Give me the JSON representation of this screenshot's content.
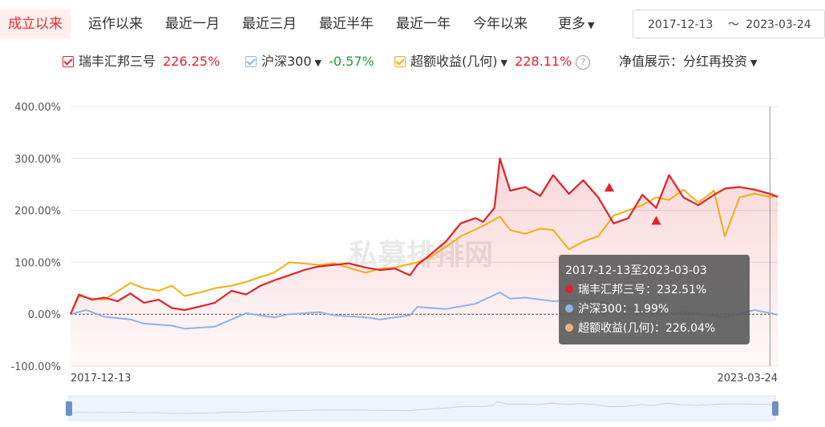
{
  "tabs": [
    "成立以来",
    "运作以来",
    "最近一月",
    "最近三月",
    "最近半年",
    "最近一年",
    "今年以来",
    "更多"
  ],
  "date_range": {
    "start": "2017-12-13",
    "sep": "～",
    "end": "2023-03-24"
  },
  "legend": {
    "fund": {
      "name": "瑞丰汇邦三号",
      "value": "226.25%",
      "color": "#e0222a"
    },
    "index": {
      "name": "沪深300",
      "value": "-0.57%",
      "color": "#8fb3ea"
    },
    "excess": {
      "name": "超额收益(几何)",
      "value": "228.11%",
      "color": "#f5ad0f"
    },
    "nav_label": "净值展示：",
    "nav_value": "分红再投资"
  },
  "watermark": "私募排排网",
  "tooltip": {
    "title": "2017-12-13至2023-03-03",
    "rows": [
      {
        "label": "瑞丰汇邦三号：",
        "value": "232.51%",
        "color": "#e0222a"
      },
      {
        "label": "沪深300：",
        "value": "1.99%",
        "color": "#8fb3ea"
      },
      {
        "label": "超额收益(几何)：",
        "value": "226.04%",
        "color": "#f6b183"
      }
    ]
  },
  "chart_data": {
    "type": "line",
    "x_range": [
      "2017-12-13",
      "2023-03-24"
    ],
    "x_tick_labels": [
      "2017-12-13",
      "2023-03-24"
    ],
    "y_tick_labels": [
      "400.00%",
      "300.00%",
      "200.00%",
      "100.00%",
      "0.00%",
      "-100.00%"
    ],
    "ylim": [
      -100,
      400
    ],
    "grid": true,
    "series": [
      {
        "name": "瑞丰汇邦三号",
        "color": "#e0222a",
        "x": [
          "2017-12-13",
          "2018-01-05",
          "2018-02-10",
          "2018-03-15",
          "2018-04-20",
          "2018-05-25",
          "2018-07-01",
          "2018-08-10",
          "2018-09-15",
          "2018-10-20",
          "2018-12-01",
          "2019-01-10",
          "2019-02-25",
          "2019-04-05",
          "2019-05-15",
          "2019-06-20",
          "2019-08-01",
          "2019-09-10",
          "2019-10-20",
          "2019-12-01",
          "2020-01-10",
          "2020-02-25",
          "2020-04-05",
          "2020-05-15",
          "2020-06-25",
          "2020-07-15",
          "2020-08-20",
          "2020-10-01",
          "2020-11-10",
          "2020-12-20",
          "2021-01-10",
          "2021-02-10",
          "2021-02-25",
          "2021-03-25",
          "2021-05-05",
          "2021-06-15",
          "2021-07-20",
          "2021-09-01",
          "2021-10-10",
          "2021-11-20",
          "2022-01-01",
          "2022-02-10",
          "2022-03-20",
          "2022-04-27",
          "2022-06-01",
          "2022-07-10",
          "2022-08-20",
          "2022-10-01",
          "2022-10-31",
          "2022-12-10",
          "2023-01-20",
          "2023-03-03",
          "2023-03-24"
        ],
        "y": [
          0,
          38,
          28,
          32,
          25,
          40,
          22,
          28,
          12,
          8,
          15,
          22,
          45,
          38,
          55,
          65,
          75,
          85,
          92,
          95,
          98,
          90,
          85,
          88,
          75,
          95,
          115,
          140,
          175,
          185,
          178,
          205,
          300,
          238,
          245,
          228,
          268,
          232,
          258,
          225,
          175,
          185,
          230,
          205,
          268,
          225,
          210,
          230,
          242,
          245,
          240,
          232,
          226
        ]
      },
      {
        "name": "沪深300",
        "color": "#8fb3ea",
        "x": [
          "2017-12-13",
          "2018-01-25",
          "2018-03-15",
          "2018-05-25",
          "2018-07-01",
          "2018-09-15",
          "2018-10-20",
          "2019-01-10",
          "2019-02-25",
          "2019-04-05",
          "2019-06-20",
          "2019-08-01",
          "2019-10-20",
          "2019-12-01",
          "2020-02-25",
          "2020-04-05",
          "2020-06-25",
          "2020-07-15",
          "2020-10-01",
          "2020-12-20",
          "2021-02-25",
          "2021-03-25",
          "2021-05-05",
          "2021-07-20",
          "2021-10-10",
          "2021-12-20",
          "2022-03-20",
          "2022-04-27",
          "2022-07-10",
          "2022-10-31",
          "2023-01-20",
          "2023-03-03",
          "2023-03-24"
        ],
        "y": [
          0,
          8,
          -5,
          -10,
          -18,
          -22,
          -28,
          -24,
          -10,
          2,
          -6,
          0,
          4,
          -2,
          -6,
          -10,
          -2,
          14,
          10,
          20,
          42,
          30,
          32,
          25,
          28,
          20,
          5,
          -5,
          5,
          -6,
          8,
          2,
          -1
        ]
      },
      {
        "name": "超额收益(几何)",
        "color": "#f5ad0f",
        "x": [
          "2017-12-13",
          "2018-01-05",
          "2018-02-10",
          "2018-03-15",
          "2018-05-25",
          "2018-07-01",
          "2018-08-10",
          "2018-09-15",
          "2018-10-20",
          "2018-12-01",
          "2019-01-10",
          "2019-02-25",
          "2019-04-05",
          "2019-05-15",
          "2019-06-20",
          "2019-08-01",
          "2019-10-20",
          "2019-12-01",
          "2020-02-25",
          "2020-04-05",
          "2020-05-15",
          "2020-07-15",
          "2020-08-20",
          "2020-10-01",
          "2020-11-10",
          "2021-01-10",
          "2021-02-25",
          "2021-03-25",
          "2021-05-05",
          "2021-06-15",
          "2021-07-20",
          "2021-09-01",
          "2021-10-10",
          "2021-11-20",
          "2022-01-01",
          "2022-02-10",
          "2022-03-20",
          "2022-04-27",
          "2022-06-01",
          "2022-07-10",
          "2022-08-20",
          "2022-10-01",
          "2022-10-31",
          "2022-12-10",
          "2023-01-20",
          "2023-03-03",
          "2023-03-24"
        ],
        "y": [
          0,
          35,
          30,
          28,
          60,
          50,
          45,
          55,
          35,
          42,
          50,
          55,
          62,
          72,
          80,
          100,
          95,
          98,
          80,
          88,
          90,
          100,
          110,
          130,
          150,
          170,
          188,
          162,
          155,
          165,
          162,
          125,
          140,
          150,
          190,
          200,
          210,
          225,
          220,
          240,
          215,
          238,
          150,
          225,
          232,
          226,
          228
        ]
      }
    ]
  }
}
